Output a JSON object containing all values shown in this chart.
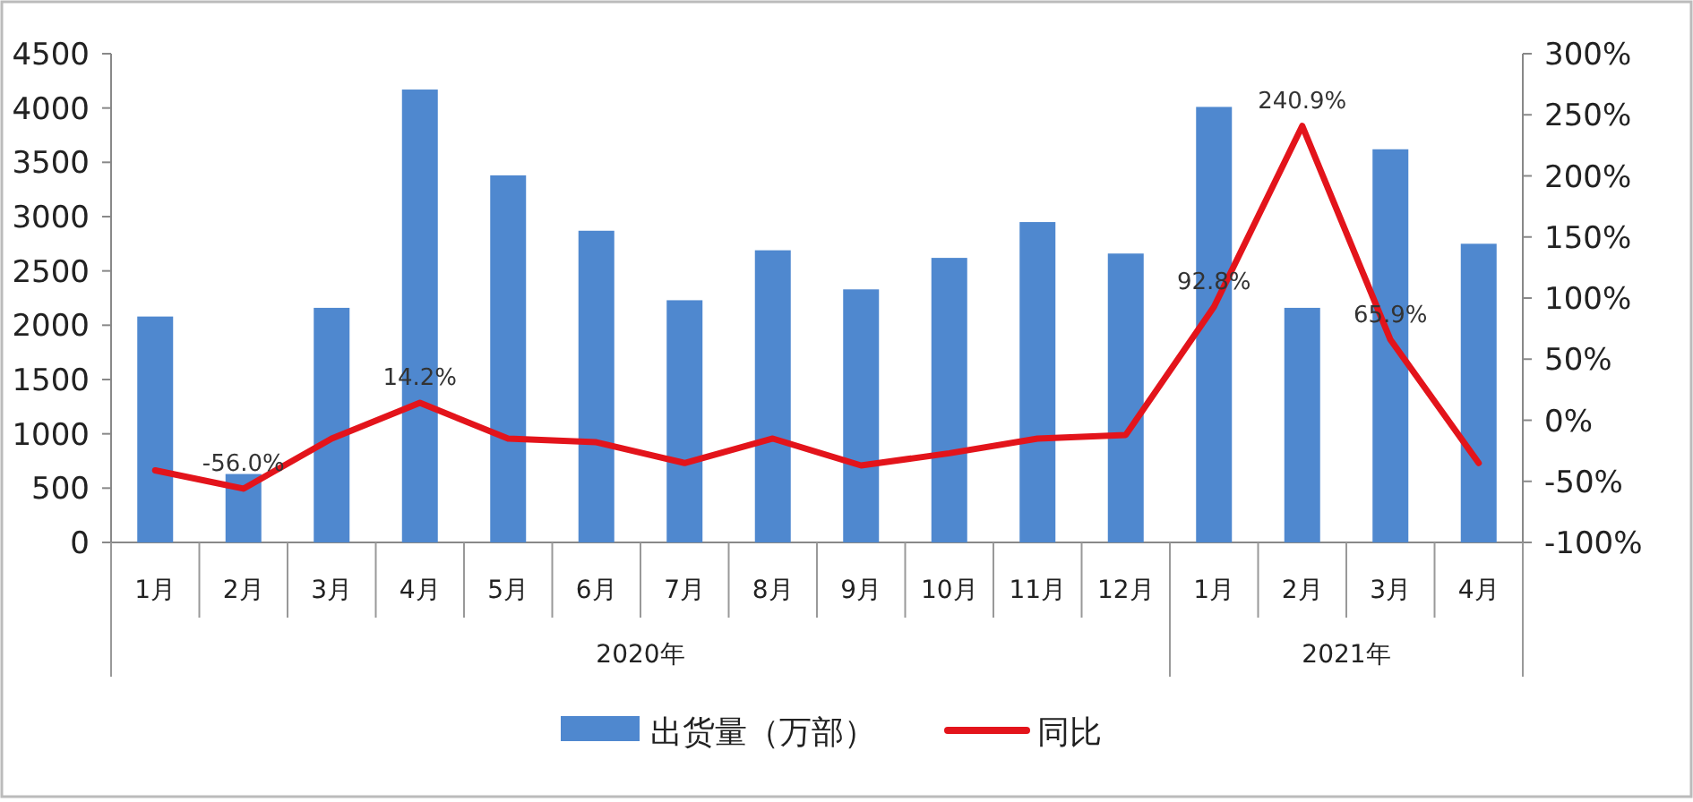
{
  "chart_data": {
    "type": "bar",
    "categories": [
      "1月",
      "2月",
      "3月",
      "4月",
      "5月",
      "6月",
      "7月",
      "8月",
      "9月",
      "10月",
      "11月",
      "12月",
      "1月",
      "2月",
      "3月",
      "4月"
    ],
    "series": [
      {
        "name": "出货量（万部）",
        "color": "#4f88cf",
        "values": [
          2080,
          630,
          2160,
          4170,
          3380,
          2870,
          2230,
          2690,
          2330,
          2620,
          2950,
          2660,
          4010,
          2160,
          3620,
          2750
        ]
      },
      {
        "name": "同比",
        "type": "line",
        "axis": "y2",
        "color": "#e3141b",
        "values": [
          -41,
          -56.0,
          -15,
          14.2,
          -15,
          -18,
          -35,
          -15,
          -37,
          -27,
          -15,
          -12,
          92.8,
          240.9,
          65.9,
          -35
        ],
        "value_labels": [
          null,
          "-56.0%",
          null,
          "14.2%",
          null,
          null,
          null,
          null,
          null,
          null,
          null,
          null,
          "92.8%",
          "240.9%",
          "65.9%",
          null
        ]
      }
    ],
    "ylim": [
      0,
      4500
    ],
    "yticks": [
      0,
      500,
      1000,
      1500,
      2000,
      2500,
      3000,
      3500,
      4000,
      4500
    ],
    "y2lim": [
      -100,
      300
    ],
    "y2ticks": [
      {
        "value": -100,
        "label": "-100%"
      },
      {
        "value": -50,
        "label": "-50%"
      },
      {
        "value": 0,
        "label": "0%"
      },
      {
        "value": 50,
        "label": "50%"
      },
      {
        "value": 100,
        "label": "100%"
      },
      {
        "value": 150,
        "label": "150%"
      },
      {
        "value": 200,
        "label": "200%"
      },
      {
        "value": 250,
        "label": "250%"
      },
      {
        "value": 300,
        "label": "300%"
      }
    ],
    "annotations": [
      "2020年",
      "2021年"
    ],
    "grid": false,
    "legend": "bottom"
  }
}
